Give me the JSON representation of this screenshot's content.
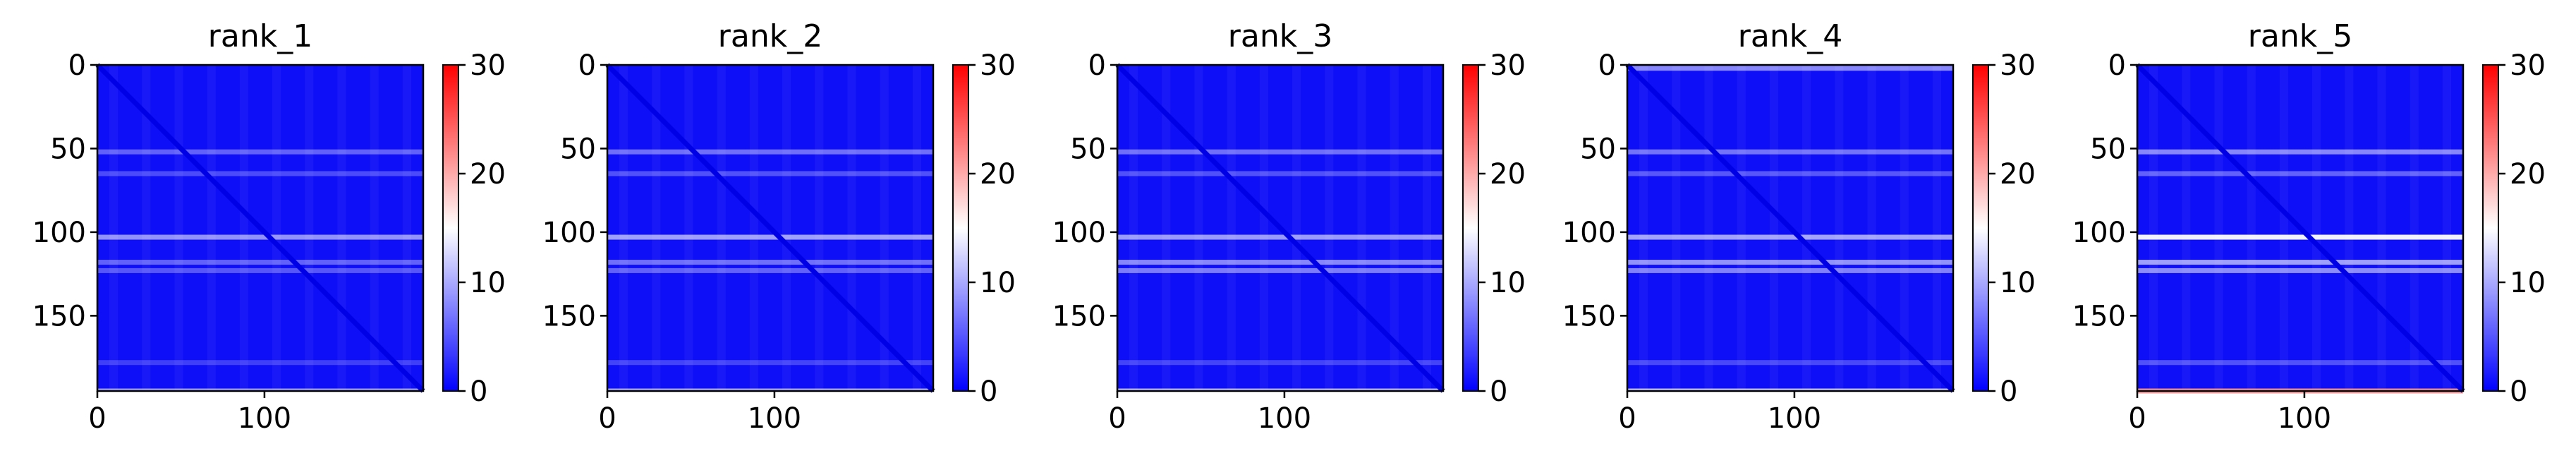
{
  "chart_data": {
    "type": "heatmap",
    "panels": [
      {
        "title": "rank_1",
        "bright_rows": {
          "52": 0.35,
          "65": 0.25,
          "103": 0.55,
          "118": 0.35,
          "123": 0.3,
          "178": 0.2,
          "195": 0.6
        }
      },
      {
        "title": "rank_2",
        "bright_rows": {
          "52": 0.4,
          "65": 0.28,
          "103": 0.6,
          "118": 0.4,
          "123": 0.35,
          "178": 0.22,
          "195": 0.65
        }
      },
      {
        "title": "rank_3",
        "bright_rows": {
          "52": 0.4,
          "65": 0.28,
          "103": 0.58,
          "118": 0.5,
          "123": 0.45,
          "178": 0.22,
          "195": 0.7
        }
      },
      {
        "title": "rank_4",
        "bright_rows": {
          "2": 0.5,
          "52": 0.42,
          "65": 0.3,
          "103": 0.62,
          "118": 0.55,
          "123": 0.48,
          "178": 0.24,
          "195": 0.75
        }
      },
      {
        "title": "rank_5",
        "bright_rows": {
          "52": 0.5,
          "65": 0.35,
          "103": 0.95,
          "118": 0.6,
          "123": 0.52,
          "178": 0.28,
          "195": 1.05
        }
      }
    ],
    "x_range": [
      0,
      195
    ],
    "y_range": [
      195,
      0
    ],
    "x_ticks": [
      0,
      100
    ],
    "y_ticks": [
      0,
      50,
      100,
      150
    ],
    "colorbar": {
      "range": [
        0,
        30
      ],
      "ticks": [
        0,
        10,
        20,
        30
      ],
      "colormap": "bwr"
    },
    "colors": {
      "low": "#0000ff",
      "mid": "#ffffff",
      "high": "#ff0000"
    }
  }
}
